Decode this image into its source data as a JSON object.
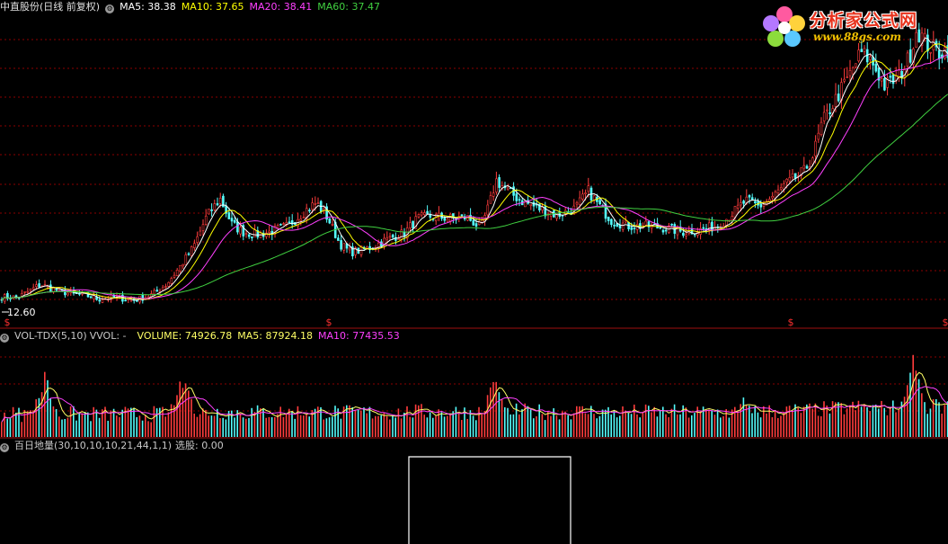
{
  "price_panel": {
    "title": "中直股份(日线 前复权)",
    "ma5": "MA5: 38.38",
    "ma10": "MA10: 37.65",
    "ma20": "MA20: 38.41",
    "ma60": "MA60: 37.47",
    "low_label": "12.60",
    "marker_label": "$"
  },
  "volume_panel": {
    "title": "VOL-TDX(5,10)",
    "vvol": "VVOL: -",
    "volume": "VOLUME: 74926.78",
    "ma5": "MA5: 87924.18",
    "ma10": "MA10: 77435.53"
  },
  "indicator_panel": {
    "title": "百日地量(30,10,10,10,21,44,1,1)",
    "value": "选股: 0.00"
  },
  "logo": {
    "title": "分析家公式网",
    "url": "www.88gs.com"
  },
  "colors": {
    "up": "#ff3c3c",
    "down": "#54fcfc",
    "ma5": "#ffffff",
    "ma10": "#ffff00",
    "ma20": "#ff40ff",
    "ma60": "#40d040",
    "grid": "#8b0000"
  },
  "chart_data": {
    "type": "candlestick",
    "price_trend": [
      [
        0,
        12.9
      ],
      [
        20,
        12.9
      ],
      [
        45,
        14.2
      ],
      [
        60,
        13.7
      ],
      [
        80,
        13.2
      ],
      [
        95,
        13.1
      ],
      [
        110,
        12.7
      ],
      [
        125,
        12.9
      ],
      [
        150,
        12.6
      ],
      [
        170,
        13.2
      ],
      [
        185,
        14.2
      ],
      [
        200,
        16.0
      ],
      [
        215,
        18.0
      ],
      [
        230,
        21.2
      ],
      [
        245,
        23.0
      ],
      [
        258,
        20.4
      ],
      [
        270,
        19.6
      ],
      [
        285,
        19.3
      ],
      [
        300,
        19.6
      ],
      [
        320,
        20.2
      ],
      [
        340,
        21.8
      ],
      [
        352,
        22.6
      ],
      [
        365,
        21.0
      ],
      [
        378,
        18.4
      ],
      [
        390,
        17.5
      ],
      [
        410,
        17.9
      ],
      [
        430,
        18.8
      ],
      [
        450,
        19.5
      ],
      [
        465,
        21.0
      ],
      [
        480,
        21.2
      ],
      [
        500,
        21.0
      ],
      [
        520,
        21.1
      ],
      [
        535,
        20.0
      ],
      [
        545,
        22.5
      ],
      [
        552,
        24.9
      ],
      [
        565,
        23.8
      ],
      [
        580,
        22.8
      ],
      [
        600,
        22.0
      ],
      [
        620,
        21.3
      ],
      [
        640,
        22.0
      ],
      [
        655,
        23.8
      ],
      [
        665,
        22.5
      ],
      [
        680,
        20.8
      ],
      [
        700,
        20.2
      ],
      [
        720,
        20.2
      ],
      [
        740,
        20.0
      ],
      [
        760,
        19.6
      ],
      [
        780,
        19.8
      ],
      [
        800,
        20.3
      ],
      [
        815,
        21.5
      ],
      [
        830,
        22.8
      ],
      [
        845,
        22.2
      ],
      [
        860,
        23.2
      ],
      [
        875,
        24.5
      ],
      [
        895,
        25.8
      ],
      [
        905,
        27.5
      ],
      [
        915,
        30.8
      ],
      [
        930,
        33.2
      ],
      [
        945,
        35.6
      ],
      [
        958,
        38.0
      ],
      [
        970,
        37.1
      ],
      [
        985,
        34.5
      ],
      [
        1000,
        35.5
      ],
      [
        1012,
        37.5
      ],
      [
        1020,
        40.4
      ],
      [
        1032,
        38.8
      ],
      [
        1045,
        38.0
      ],
      [
        1055,
        38.4
      ]
    ],
    "volume_spikes": [
      [
        50,
        0.75
      ],
      [
        200,
        0.62
      ],
      [
        205,
        0.7
      ],
      [
        550,
        0.72
      ],
      [
        828,
        0.45
      ],
      [
        1015,
        1.0
      ],
      [
        1020,
        0.78
      ]
    ],
    "signal_markers_x": [
      8,
      366,
      880,
      1052
    ],
    "selection_signal": [
      {
        "from_x": 455,
        "to_x": 635,
        "value": 1
      }
    ]
  }
}
